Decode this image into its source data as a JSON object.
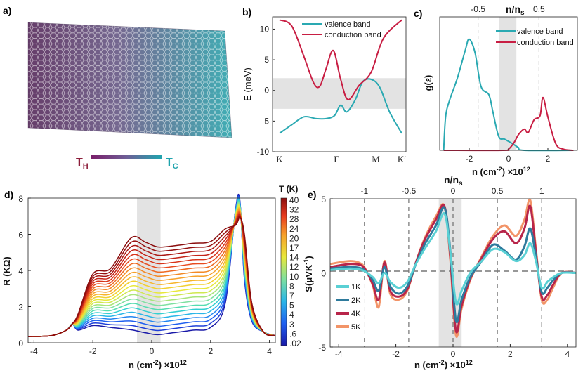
{
  "figure": {
    "panels": {
      "a": "a)",
      "b": "b)",
      "c": "c)",
      "d": "d)",
      "e": "e)"
    },
    "lattice": {
      "t_hot": "T",
      "t_hot_sub": "H",
      "t_cold": "T",
      "t_cold_sub": "C",
      "color_hot": "#8c1d3a",
      "color_cold": "#1fa3ad"
    }
  },
  "chart_data": [
    {
      "id": "b",
      "type": "line",
      "ylabel": "E (meV)",
      "xlabel": "",
      "xticks": [
        "K",
        "Γ",
        "M",
        "K′"
      ],
      "ylim": [
        -10,
        12
      ],
      "yticks": [
        -10,
        -5,
        0,
        5,
        10
      ],
      "shaded_band": [
        -3,
        2
      ],
      "legend": [
        "valence band",
        "conduction band"
      ],
      "series": [
        {
          "name": "valence band",
          "color": "#2aa9b2",
          "x": [
            0,
            0.1,
            0.2,
            0.3,
            0.38,
            0.45,
            0.5,
            0.55,
            0.62,
            0.68,
            0.75,
            0.82,
            0.9,
            1.0
          ],
          "values": [
            -7,
            -5.6,
            -4.3,
            -4.6,
            -4.6,
            -4.1,
            -2.4,
            -3.5,
            -1.5,
            1.4,
            1.8,
            0.5,
            -3.5,
            -7
          ]
        },
        {
          "name": "conduction band",
          "color": "#c81e43",
          "x": [
            0,
            0.1,
            0.2,
            0.28,
            0.33,
            0.38,
            0.44,
            0.5,
            0.56,
            0.65,
            0.75,
            0.85,
            1.0
          ],
          "values": [
            11.5,
            10.5,
            5.5,
            1.2,
            0.7,
            3.5,
            6.5,
            1.8,
            -1.5,
            0.8,
            3.0,
            8.5,
            11.5
          ]
        }
      ]
    },
    {
      "id": "c",
      "type": "line",
      "ylabel": "g(ε)",
      "xlabel": "n (cm",
      "xlabel_sup": "-2",
      "xlabel_tail": ") ×10",
      "xlabel_exp": "12",
      "xlim": [
        -3.5,
        3.5
      ],
      "xticks": [
        -2,
        0,
        2
      ],
      "top_axis_label": "n/n",
      "top_axis_sub": "s",
      "top_ticks": [
        "-0.5",
        "0.5"
      ],
      "top_tick_positions": [
        -1.55,
        1.55
      ],
      "shaded_band": [
        -0.5,
        0.4
      ],
      "legend": [
        "valence band",
        "conduction band"
      ],
      "series": [
        {
          "name": "valence band",
          "color": "#2aa9b2",
          "x": [
            -3.3,
            -3.2,
            -3.0,
            -2.6,
            -2.2,
            -2.0,
            -1.7,
            -1.4,
            -1.0,
            -0.8,
            -0.5,
            -0.2,
            0.2,
            0.5,
            0.8,
            3.3
          ],
          "values": [
            0.0,
            0.6,
            0.9,
            1.3,
            1.8,
            2.0,
            1.75,
            1.15,
            1.0,
            0.7,
            0.25,
            0.2,
            0.12,
            0.05,
            0.0,
            0.0
          ]
        },
        {
          "name": "conduction band",
          "color": "#c81e43",
          "x": [
            -3.3,
            -0.3,
            0.0,
            0.3,
            0.5,
            0.8,
            1.0,
            1.3,
            1.6,
            1.75,
            2.0,
            2.4,
            2.8,
            3.3
          ],
          "values": [
            0.0,
            0.0,
            0.02,
            0.15,
            0.28,
            0.38,
            0.32,
            0.55,
            0.62,
            0.95,
            0.6,
            0.12,
            0.02,
            0.0
          ]
        }
      ]
    },
    {
      "id": "d",
      "type": "line",
      "ylabel": "R (KΩ)",
      "xlabel": "n (cm",
      "xlabel_sup": "-2",
      "xlabel_tail": ") ×10",
      "xlabel_exp": "12",
      "xlim": [
        -4.2,
        4.2
      ],
      "ylim": [
        0,
        8
      ],
      "xticks": [
        -4,
        -2,
        0,
        2,
        4
      ],
      "yticks": [
        0,
        2,
        4,
        6,
        8
      ],
      "shaded_band": [
        -0.5,
        0.3
      ],
      "colorbar_title": "T (K)",
      "colorbar_ticks": [
        "40",
        "32",
        "28",
        "24",
        "20",
        "17",
        "14",
        "12",
        "10",
        "8",
        "7",
        "5",
        "4",
        "3",
        ".6",
        ".02"
      ],
      "temperatures_count": 22,
      "curve_levels": {
        "low_temperature": {
          "baseline": 0.35,
          "shoulder": 0.95,
          "plateau": 0.72,
          "dip": 0.45,
          "hump": 0.85,
          "peak_at_3": 7.8
        },
        "high_temperature": {
          "baseline": 0.35,
          "shoulder": 3.8,
          "plateau": 5.8,
          "dip": 5.3,
          "hump": 5.6,
          "peak_at_3": 6.9
        }
      }
    },
    {
      "id": "e",
      "type": "line",
      "ylabel": "S(μVK",
      "ylabel_sup": "-1",
      "ylabel_tail": ")",
      "xlabel": "n (cm",
      "xlabel_sup": "-2",
      "xlabel_tail": ") ×10",
      "xlabel_exp": "12",
      "xlim": [
        -4.3,
        4.3
      ],
      "ylim": [
        -5,
        5
      ],
      "xticks": [
        -4,
        -2,
        0,
        2,
        4
      ],
      "yticks": [
        -5,
        0,
        5
      ],
      "top_axis_label": "n/n",
      "top_axis_sub": "s",
      "top_ticks": [
        "-1",
        "-0.5",
        "0",
        "0.5",
        "1"
      ],
      "top_tick_positions": [
        -3.1,
        -1.55,
        0,
        1.55,
        3.1
      ],
      "shaded_band": [
        -0.5,
        0.3
      ],
      "legend": [
        "1K",
        "2K",
        "4K",
        "5K"
      ],
      "x": [
        -4.3,
        -3.6,
        -3.2,
        -3.0,
        -2.8,
        -2.6,
        -2.4,
        -2.2,
        -1.9,
        -1.6,
        -1.3,
        -1.0,
        -0.6,
        -0.3,
        -0.1,
        0.1,
        0.3,
        0.6,
        1.0,
        1.4,
        1.8,
        2.2,
        2.5,
        2.7,
        2.9,
        3.1,
        3.3,
        3.5,
        3.8,
        4.3
      ],
      "series": [
        {
          "name": "1K",
          "color": "#5ad0d4",
          "values": [
            0.2,
            0.3,
            0.2,
            0.0,
            -0.3,
            -0.7,
            0.0,
            -0.6,
            -1.0,
            -0.6,
            0.6,
            1.6,
            2.8,
            4.0,
            1.5,
            -2.0,
            -1.2,
            0.0,
            0.8,
            1.6,
            1.4,
            0.8,
            1.2,
            2.0,
            0.8,
            -1.0,
            -0.6,
            -0.3,
            0.0,
            0.0
          ]
        },
        {
          "name": "2K",
          "color": "#2e7a9c",
          "values": [
            0.3,
            0.4,
            0.3,
            0.0,
            -0.5,
            -1.2,
            0.4,
            -0.9,
            -1.4,
            -0.9,
            0.6,
            1.9,
            3.2,
            4.4,
            1.6,
            -3.2,
            -1.8,
            -0.3,
            0.8,
            1.9,
            1.5,
            0.9,
            1.8,
            3.0,
            1.1,
            -1.3,
            -1.0,
            -0.5,
            0.0,
            0.0
          ]
        },
        {
          "name": "4K",
          "color": "#b8254a",
          "values": [
            0.4,
            0.6,
            0.5,
            0.0,
            -0.8,
            -1.8,
            0.7,
            -1.2,
            -1.6,
            -1.1,
            0.7,
            2.2,
            3.6,
            4.5,
            1.2,
            -3.9,
            -2.2,
            -0.4,
            1.0,
            2.3,
            2.8,
            2.0,
            3.0,
            4.5,
            1.4,
            -1.6,
            -1.5,
            -0.8,
            0.0,
            0.0
          ]
        },
        {
          "name": "5K",
          "color": "#f29468",
          "values": [
            0.6,
            0.8,
            0.6,
            0.0,
            -0.9,
            -2.3,
            0.8,
            -1.4,
            -1.8,
            -1.2,
            0.7,
            2.3,
            3.8,
            4.5,
            1.0,
            -4.2,
            -2.4,
            -0.5,
            1.1,
            2.5,
            3.2,
            2.5,
            3.6,
            4.9,
            1.6,
            -1.8,
            -1.8,
            -1.0,
            0.0,
            0.0
          ]
        }
      ]
    }
  ]
}
